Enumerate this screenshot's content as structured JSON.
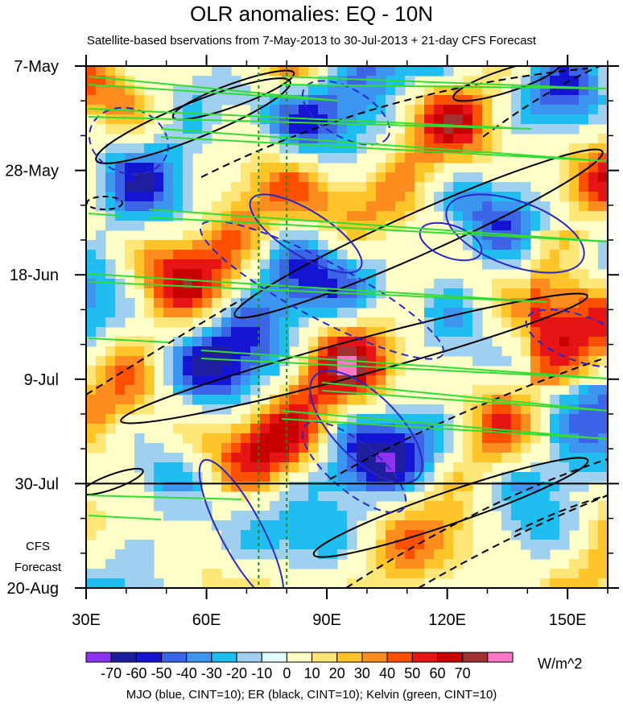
{
  "chart_data": {
    "type": "heatmap",
    "title": "OLR anomalies: EQ - 10N",
    "subtitle": "Satellite-based bservations from 7-May-2013 to 30-Jul-2013 + 21-day CFS Forecast",
    "x_ticks": [
      {
        "label": "30E",
        "value": 30
      },
      {
        "label": "60E",
        "value": 60
      },
      {
        "label": "90E",
        "value": 90
      },
      {
        "label": "120E",
        "value": 120
      },
      {
        "label": "150E",
        "value": 150
      }
    ],
    "xlim": [
      30,
      160
    ],
    "y_ticks": [
      {
        "label": "7-May",
        "day": 0
      },
      {
        "label": "28-May",
        "day": 21
      },
      {
        "label": "18-Jun",
        "day": 42
      },
      {
        "label": "9-Jul",
        "day": 63
      },
      {
        "label": "30-Jul",
        "day": 84
      },
      {
        "label": "20-Aug",
        "day": 105
      }
    ],
    "ylim_days": [
      0,
      105
    ],
    "forecast_start_day": 84,
    "forecast_label": [
      "CFS",
      "Forecast"
    ],
    "vertical_lines_lon": [
      73,
      80
    ],
    "colorbar": {
      "labels": [
        "-70",
        "-60",
        "-50",
        "-40",
        "-30",
        "-20",
        "-10",
        "0",
        "10",
        "20",
        "30",
        "40",
        "50",
        "60",
        "70"
      ],
      "colors": [
        "#8c32f0",
        "#1e1e9e",
        "#1414d2",
        "#3c64e6",
        "#3c96f0",
        "#20bef0",
        "#a0d0f0",
        "#e0ffff",
        "#ffffc8",
        "#ffe678",
        "#ffc428",
        "#ff8c1e",
        "#ff5000",
        "#e61414",
        "#c80000",
        "#a03232",
        "#ff78c8"
      ],
      "units": "W/m^2"
    },
    "legend_text": "MJO (blue, CINT=10); ER (black, CINT=10); Kelvin (green, CINT=10)",
    "series": [
      {
        "name": "MJO",
        "color": "#2828c8"
      },
      {
        "name": "ER",
        "color": "#000000"
      },
      {
        "name": "Kelvin",
        "color": "#32dc32"
      }
    ]
  }
}
